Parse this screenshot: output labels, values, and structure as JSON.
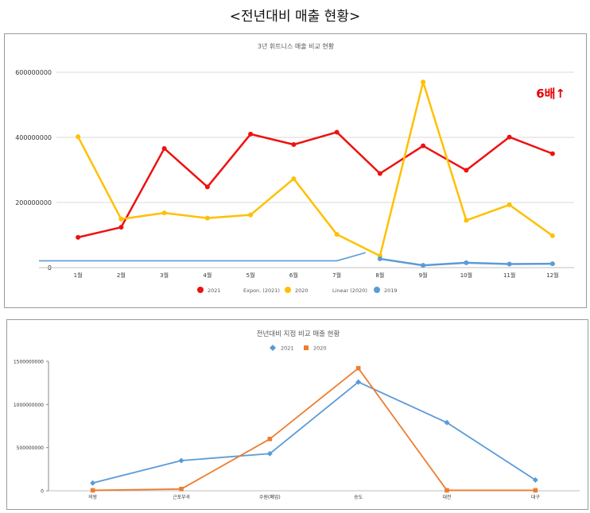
{
  "page_title": "<전년대비 매출 현황>",
  "chart_data": [
    {
      "type": "line",
      "title": "3년 휘트니스 매출 비교 현황",
      "annotation": "6배↑",
      "annotation_color": "#e60000",
      "categories": [
        "1월",
        "2월",
        "3월",
        "4월",
        "5월",
        "6월",
        "7월",
        "8월",
        "9월",
        "10월",
        "11월",
        "12월"
      ],
      "ylim": [
        0,
        600000000
      ],
      "y_ticks": [
        "0",
        "200000000",
        "400000000",
        "600000000"
      ],
      "grid": true,
      "legend_position": "bottom",
      "legend": [
        "2021",
        "Expon. (2021)",
        "2020",
        "Linear (2020)",
        "2019"
      ],
      "series": [
        {
          "name": "2021",
          "color": "#ee1111",
          "values": [
            93000000,
            124000000,
            366000000,
            248000000,
            410000000,
            378000000,
            416000000,
            289000000,
            374000000,
            299000000,
            401000000,
            350000000
          ]
        },
        {
          "name": "2020",
          "color": "#ffc000",
          "values": [
            402000000,
            149000000,
            168000000,
            152000000,
            162000000,
            273000000,
            102000000,
            36000000,
            570000000,
            145000000,
            193000000,
            98000000
          ]
        },
        {
          "name": "2019",
          "color": "#5b9bd5",
          "values": [
            null,
            null,
            null,
            null,
            null,
            null,
            null,
            27000000,
            7000000,
            15000000,
            11000000,
            12000000
          ]
        }
      ],
      "trendline_2019": [
        21000000,
        21000000,
        21000000,
        21000000,
        21000000,
        21000000,
        21000000,
        46000000
      ]
    },
    {
      "type": "line",
      "title": "전년대비 지점 비교 매출 현황",
      "categories": [
        "의왕",
        "근포부곡",
        "수원(폐업)",
        "송도",
        "대전",
        "대구"
      ],
      "ylim": [
        0,
        1500000000
      ],
      "y_ticks": [
        "0",
        "500000000",
        "1000000000",
        "1500000000"
      ],
      "legend_position": "top",
      "series": [
        {
          "name": "2021",
          "color": "#5b9bd5",
          "marker": "diamond",
          "values": [
            90000000,
            350000000,
            430000000,
            1260000000,
            790000000,
            125000000
          ]
        },
        {
          "name": "2020",
          "color": "#ed7d31",
          "marker": "square",
          "values": [
            5000000,
            20000000,
            600000000,
            1420000000,
            5000000,
            5000000
          ]
        }
      ]
    }
  ]
}
